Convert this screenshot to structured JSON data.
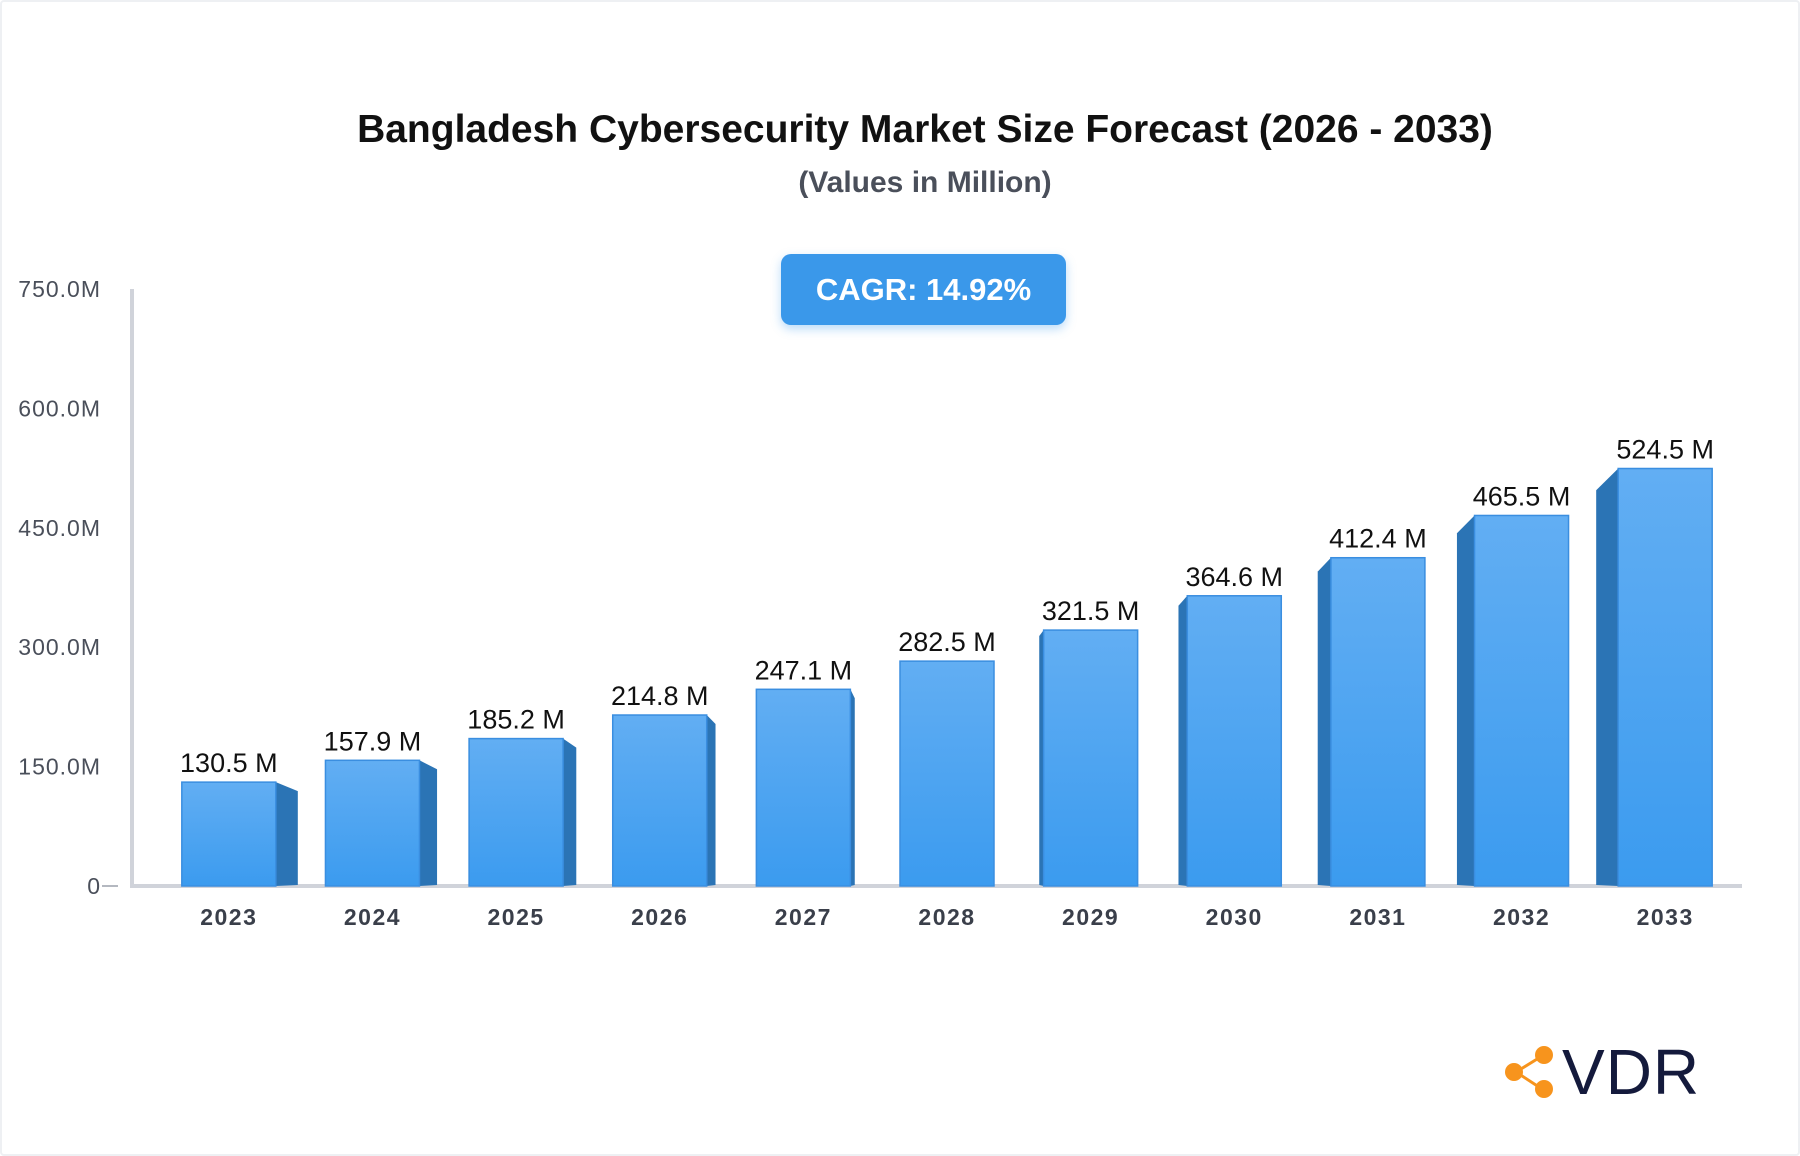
{
  "chart_data": {
    "type": "bar",
    "title": "Bangladesh Cybersecurity Market Size Forecast (2026 - 2033)",
    "subtitle": "(Values in Million)",
    "badge": "CAGR: 14.92%",
    "categories": [
      "2023",
      "2024",
      "2025",
      "2026",
      "2027",
      "2028",
      "2029",
      "2030",
      "2031",
      "2032",
      "2033"
    ],
    "values": [
      130.5,
      157.9,
      185.2,
      214.8,
      247.1,
      282.5,
      321.5,
      364.6,
      412.4,
      465.5,
      524.5
    ],
    "data_labels": [
      "130.5 M",
      "157.9 M",
      "185.2 M",
      "214.8 M",
      "247.1 M",
      "282.5 M",
      "321.5 M",
      "364.6 M",
      "412.4 M",
      "465.5 M",
      "524.5 M"
    ],
    "yticks": [
      0,
      150,
      300,
      450,
      600,
      750
    ],
    "ytick_labels": [
      "0",
      "150.0M",
      "300.0M",
      "450.0M",
      "600.0M",
      "750.0M"
    ],
    "ylim": [
      0,
      750
    ],
    "xlabel": "",
    "ylabel": "",
    "grid": false,
    "colors": {
      "bar_front_top": "#62aef3",
      "bar_front_bottom": "#3b9bef",
      "bar_side": "#2b74b5",
      "axis": "#d0d3da",
      "badge": "#3a98ea"
    }
  },
  "logo": {
    "text": "VDR",
    "accent": "#f7941d"
  }
}
